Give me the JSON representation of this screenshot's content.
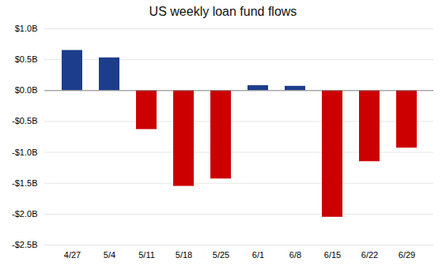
{
  "chart_data": {
    "type": "bar",
    "title": "US weekly loan fund flows",
    "categories": [
      "4/27",
      "5/4",
      "5/11",
      "5/18",
      "5/25",
      "6/1",
      "6/8",
      "6/15",
      "6/22",
      "6/29"
    ],
    "values": [
      0.65,
      0.53,
      -0.63,
      -1.55,
      -1.43,
      0.08,
      0.07,
      -2.05,
      -1.15,
      -0.93
    ],
    "colors": [
      "#1c3d8c",
      "#1c3d8c",
      "#cc0000",
      "#cc0000",
      "#cc0000",
      "#1c3d8c",
      "#1c3d8c",
      "#cc0000",
      "#cc0000",
      "#cc0000"
    ],
    "ylim": [
      -2.5,
      1.0
    ],
    "yticks": [
      {
        "value": -2.5,
        "label": "-$2.5B"
      },
      {
        "value": -2.0,
        "label": "-$2.0B"
      },
      {
        "value": -1.5,
        "label": "-$1.5B"
      },
      {
        "value": -1.0,
        "label": "-$1.0B"
      },
      {
        "value": -0.5,
        "label": "-$0.5B"
      },
      {
        "value": 0.0,
        "label": "$0.0B"
      },
      {
        "value": 0.5,
        "label": "$0.5B"
      },
      {
        "value": 1.0,
        "label": "$1.0B"
      }
    ],
    "grid": true
  }
}
